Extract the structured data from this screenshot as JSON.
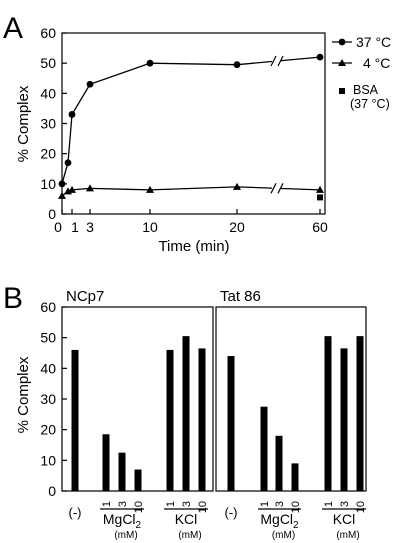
{
  "chart_data": [
    {
      "panel": "A",
      "type": "line",
      "xlabel": "Time (min)",
      "ylabel": "% Complex",
      "ylim": [
        0,
        60
      ],
      "yticks": [
        0,
        10,
        20,
        30,
        40,
        50,
        60
      ],
      "xtick_labels": [
        "0",
        "1",
        "3",
        "10",
        "20",
        "60"
      ],
      "axis_break_between": [
        20,
        60
      ],
      "grid": false,
      "legend_position": "right",
      "series": [
        {
          "name": "37 °C",
          "marker": "circle",
          "x": [
            0,
            0.5,
            1,
            3,
            10,
            20,
            60
          ],
          "y": [
            10,
            17,
            33,
            43,
            50,
            49.5,
            52
          ]
        },
        {
          "name": "4 °C",
          "marker": "triangle",
          "x": [
            0,
            0.5,
            1,
            3,
            10,
            20,
            60
          ],
          "y": [
            6,
            7.5,
            8,
            8.5,
            8,
            9,
            8
          ]
        },
        {
          "name": "BSA",
          "name_extra": "(37 °C)",
          "marker": "square",
          "x": [
            60
          ],
          "y": [
            5.5
          ]
        }
      ]
    },
    {
      "panel": "B",
      "type": "bar",
      "ylabel": "% Complex",
      "ylim": [
        0,
        60
      ],
      "yticks": [
        0,
        10,
        20,
        30,
        40,
        50,
        60
      ],
      "groups": [
        {
          "label": "(-)",
          "unit": "",
          "categories": [
            "(-)"
          ]
        },
        {
          "label": "MgCl2",
          "label_base": "MgCl",
          "label_sub": "2",
          "unit": "(mM)",
          "categories": [
            "1",
            "3",
            "10"
          ]
        },
        {
          "label": "KCl",
          "unit": "(mM)",
          "categories": [
            "1",
            "3",
            "10"
          ]
        }
      ],
      "subpanels": [
        {
          "title": "NCp7",
          "values": [
            46,
            18.5,
            12.5,
            7,
            46,
            50.5,
            46.5
          ]
        },
        {
          "title": "Tat 86",
          "values": [
            44,
            27.5,
            18,
            9,
            50.5,
            46.5,
            50.5
          ]
        }
      ]
    }
  ]
}
